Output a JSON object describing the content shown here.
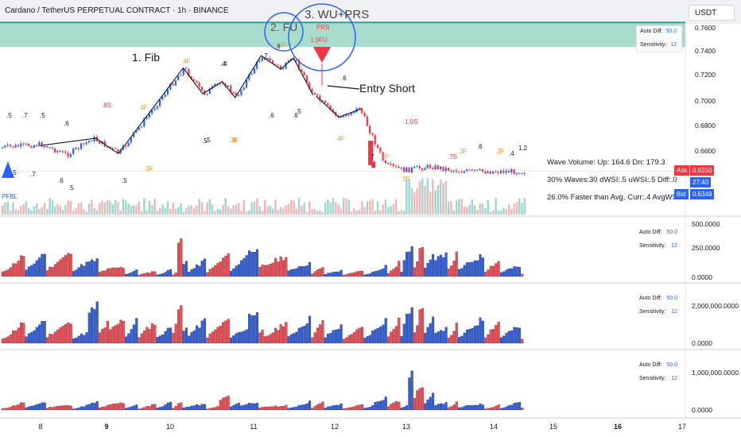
{
  "header": {
    "title": "Cardano / TetherUS PERPETUAL CONTRACT · 1h · BINANCE",
    "currency": "USDT"
  },
  "price_axis": [
    "0.7600",
    "0.7400",
    "0.7200",
    "0.7000",
    "0.6800",
    "0.6600"
  ],
  "current_price": "0.6350",
  "ask": {
    "label": "Ask",
    "value": "0.6350"
  },
  "countdown": "27:40",
  "bid": {
    "label": "Bid",
    "value": "0.6349"
  },
  "annotations": {
    "fib": "1. Fib",
    "fu": "2. FU",
    "wu_prs": "3. WU+PRS",
    "entry_short": "Entry Short",
    "prs": "PRS",
    "fu_label": "1.0FU",
    "indicator_name": "PFBL"
  },
  "wave_labels": [
    {
      "text": ".5",
      "color": "#131722"
    },
    {
      "text": ".7",
      "color": "#131722"
    },
    {
      "text": ".5",
      "color": "#131722"
    },
    {
      "text": ".6",
      "color": "#131722"
    },
    {
      "text": ".8S",
      "color": "#f23645"
    },
    {
      "text": ".4F",
      "color": "#f7931a"
    },
    {
      "text": ".4F",
      "color": "#f7931a"
    },
    {
      "text": ".4",
      "color": "#131722"
    },
    {
      "text": ".7",
      "color": "#131722"
    },
    {
      "text": ".6",
      "color": "#131722"
    },
    {
      "text": ".5",
      "color": "#131722"
    },
    {
      "text": ".5",
      "color": "#131722"
    },
    {
      "text": ".3F",
      "color": "#f7931a"
    },
    {
      "text": ".6",
      "color": "#131722"
    },
    {
      "text": ".4F",
      "color": "#f7931a"
    },
    {
      "text": ".7",
      "color": "#131722"
    },
    {
      "text": ".2F",
      "color": "#f7931a"
    },
    {
      "text": "1.0S",
      "color": "#f23645"
    },
    {
      "text": ".3F",
      "color": "#f7931a"
    },
    {
      "text": ".7S",
      "color": "#f23645"
    },
    {
      "text": ".3F",
      "color": "#f7931a"
    },
    {
      "text": ".6",
      "color": "#131722"
    },
    {
      "text": ".3F",
      "color": "#f7931a"
    },
    {
      "text": ".4",
      "color": "#131722"
    },
    {
      "text": "1.2",
      "color": "#131722"
    },
    {
      "text": ".5",
      "color": "#131722"
    },
    {
      "text": ".7",
      "color": "#131722"
    },
    {
      "text": ".6",
      "color": "#131722"
    },
    {
      "text": ".5",
      "color": "#131722"
    },
    {
      "text": ".5",
      "color": "#131722"
    },
    {
      "text": ".3F",
      "color": "#f7931a"
    },
    {
      "text": ".5",
      "color": "#131722"
    },
    {
      "text": ".6",
      "color": "#131722"
    },
    {
      "text": ".3F",
      "color": "#f7931a"
    },
    {
      "text": ".4",
      "color": "#131722"
    },
    {
      "text": ".6",
      "color": "#131722"
    },
    {
      "text": ".4F",
      "color": "#f7931a"
    }
  ],
  "info_panel": {
    "wave_volume": "Wave Volume: Up: 164.6 Dn: 179.3",
    "waves": "30% Waves:30 dWSI:.5 uWSI:.5 Diff:.0",
    "faster": "26.0% Faster than Avg. Curr:.4 AvgWSI:.4"
  },
  "settings": {
    "auto_diff_label": "Auto Diff:",
    "auto_diff_value": "50.0",
    "sensitivity_label": "Sensitivity:",
    "sensitivity_value": "12"
  },
  "subpanes": [
    {
      "axis": [
        "500.0000",
        "250.0000",
        "0.0000"
      ]
    },
    {
      "axis": [
        "2,000,000.0000",
        "0.0000"
      ]
    },
    {
      "axis": [
        "1,000,000.0000",
        "0.0000"
      ]
    }
  ],
  "date_axis": [
    {
      "label": "8",
      "bold": false
    },
    {
      "label": "9",
      "bold": true
    },
    {
      "label": "10",
      "bold": false
    },
    {
      "label": "11",
      "bold": false
    },
    {
      "label": "12",
      "bold": false
    },
    {
      "label": "13",
      "bold": false
    },
    {
      "label": "14",
      "bold": false
    },
    {
      "label": "15",
      "bold": false
    },
    {
      "label": "16",
      "bold": true
    },
    {
      "label": "17",
      "bold": false
    }
  ],
  "colors": {
    "up": "#2962ff",
    "down": "#f23645",
    "zone": "#9fd9c8",
    "zone_line": "#26a69a",
    "circle": "#2962ff"
  },
  "chart_data": {
    "type": "line",
    "title": "Cardano / TetherUS PERPETUAL CONTRACT · 1h · BINANCE",
    "ylim": [
      0.64,
      0.77
    ],
    "x": [
      "8",
      "9",
      "10",
      "11",
      "12",
      "13",
      "14",
      "15",
      "16",
      "17"
    ],
    "zone": [
      0.736,
      0.756
    ],
    "price_points": [
      {
        "date": 7.4,
        "price": 0.6545
      },
      {
        "date": 8.0,
        "price": 0.657
      },
      {
        "date": 8.4,
        "price": 0.6485
      },
      {
        "date": 8.8,
        "price": 0.662
      },
      {
        "date": 9.2,
        "price": 0.6495
      },
      {
        "date": 10.2,
        "price": 0.719
      },
      {
        "date": 10.5,
        "price": 0.698
      },
      {
        "date": 10.8,
        "price": 0.708
      },
      {
        "date": 11.0,
        "price": 0.695
      },
      {
        "date": 11.4,
        "price": 0.729
      },
      {
        "date": 11.7,
        "price": 0.718
      },
      {
        "date": 11.9,
        "price": 0.727
      },
      {
        "date": 12.2,
        "price": 0.697
      },
      {
        "date": 12.6,
        "price": 0.678
      },
      {
        "date": 12.9,
        "price": 0.687
      },
      {
        "date": 13.3,
        "price": 0.64
      },
      {
        "date": 13.6,
        "price": 0.636
      },
      {
        "date": 14.0,
        "price": 0.639
      },
      {
        "date": 14.5,
        "price": 0.635
      }
    ]
  }
}
